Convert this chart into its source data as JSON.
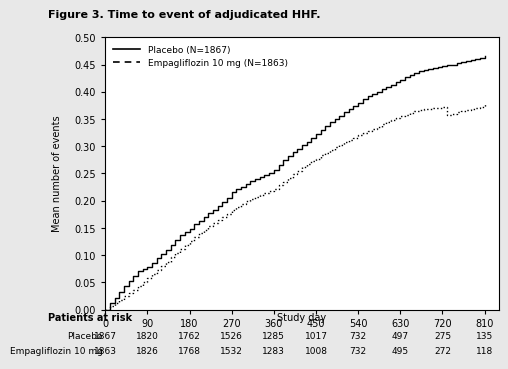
{
  "title": "Figure 3. Time to event of adjudicated HHF.",
  "xlabel": "Study day",
  "ylabel": "Mean number of events",
  "xlim": [
    0,
    840
  ],
  "ylim": [
    0.0,
    0.5
  ],
  "xticks": [
    0,
    90,
    180,
    270,
    360,
    450,
    540,
    630,
    720,
    810
  ],
  "yticks": [
    0.0,
    0.05,
    0.1,
    0.15,
    0.2,
    0.25,
    0.3,
    0.35,
    0.4,
    0.45,
    0.5
  ],
  "legend_labels": [
    "Placebo (N=1867)",
    "Empagliflozin 10 mg (N=1863)"
  ],
  "risk_table_title": "Patients at risk",
  "risk_table_rows": [
    {
      "label": "Placebo",
      "values": [
        1867,
        1820,
        1762,
        1526,
        1285,
        1017,
        732,
        497,
        275,
        135
      ]
    },
    {
      "label": "Empagliflozin 10 mg",
      "values": [
        1863,
        1826,
        1768,
        1532,
        1283,
        1008,
        732,
        495,
        272,
        118
      ]
    }
  ],
  "risk_table_days": [
    0,
    90,
    180,
    270,
    360,
    450,
    540,
    630,
    720,
    810
  ],
  "background_color": "#e8e8e8",
  "plot_bg_color": "#ffffff",
  "line_color": "#000000",
  "placebo_x": [
    0,
    10,
    20,
    30,
    40,
    50,
    60,
    70,
    80,
    90,
    100,
    110,
    120,
    130,
    140,
    150,
    160,
    170,
    180,
    190,
    200,
    210,
    220,
    230,
    240,
    250,
    260,
    270,
    280,
    290,
    300,
    310,
    320,
    330,
    340,
    350,
    360,
    370,
    380,
    390,
    400,
    410,
    420,
    430,
    440,
    450,
    460,
    470,
    480,
    490,
    500,
    510,
    520,
    530,
    540,
    550,
    560,
    570,
    580,
    590,
    600,
    610,
    620,
    630,
    640,
    650,
    660,
    670,
    680,
    690,
    700,
    710,
    720,
    730,
    740,
    750,
    760,
    770,
    780,
    790,
    800,
    810
  ],
  "placebo_y": [
    0.0,
    0.012,
    0.022,
    0.033,
    0.043,
    0.053,
    0.062,
    0.07,
    0.075,
    0.079,
    0.086,
    0.094,
    0.102,
    0.11,
    0.118,
    0.128,
    0.137,
    0.142,
    0.148,
    0.157,
    0.163,
    0.17,
    0.177,
    0.183,
    0.191,
    0.197,
    0.205,
    0.215,
    0.221,
    0.226,
    0.231,
    0.236,
    0.24,
    0.244,
    0.247,
    0.25,
    0.256,
    0.265,
    0.274,
    0.282,
    0.289,
    0.295,
    0.302,
    0.308,
    0.315,
    0.322,
    0.33,
    0.337,
    0.344,
    0.35,
    0.356,
    0.362,
    0.368,
    0.374,
    0.38,
    0.386,
    0.392,
    0.396,
    0.4,
    0.405,
    0.409,
    0.413,
    0.418,
    0.422,
    0.427,
    0.431,
    0.435,
    0.438,
    0.44,
    0.442,
    0.444,
    0.445,
    0.447,
    0.449,
    0.45,
    0.452,
    0.454,
    0.456,
    0.458,
    0.46,
    0.462,
    0.465
  ],
  "empa_x": [
    0,
    10,
    20,
    30,
    40,
    50,
    60,
    70,
    80,
    90,
    100,
    110,
    120,
    130,
    140,
    150,
    160,
    170,
    180,
    190,
    200,
    210,
    220,
    230,
    240,
    250,
    260,
    270,
    280,
    290,
    300,
    310,
    320,
    330,
    340,
    350,
    360,
    370,
    380,
    390,
    400,
    410,
    420,
    430,
    440,
    450,
    460,
    470,
    480,
    490,
    500,
    510,
    520,
    530,
    540,
    550,
    560,
    570,
    580,
    590,
    600,
    610,
    620,
    630,
    640,
    650,
    660,
    670,
    680,
    690,
    700,
    710,
    720,
    730,
    740,
    750,
    760,
    770,
    780,
    790,
    800,
    810
  ],
  "empa_y": [
    0.0,
    0.006,
    0.012,
    0.018,
    0.024,
    0.03,
    0.036,
    0.043,
    0.05,
    0.057,
    0.065,
    0.072,
    0.08,
    0.088,
    0.096,
    0.104,
    0.111,
    0.118,
    0.125,
    0.133,
    0.14,
    0.147,
    0.153,
    0.159,
    0.165,
    0.17,
    0.176,
    0.183,
    0.189,
    0.194,
    0.199,
    0.203,
    0.207,
    0.211,
    0.214,
    0.218,
    0.222,
    0.228,
    0.235,
    0.242,
    0.249,
    0.255,
    0.261,
    0.267,
    0.272,
    0.277,
    0.283,
    0.288,
    0.293,
    0.298,
    0.303,
    0.308,
    0.312,
    0.316,
    0.32,
    0.324,
    0.328,
    0.332,
    0.336,
    0.34,
    0.344,
    0.348,
    0.352,
    0.355,
    0.358,
    0.361,
    0.364,
    0.366,
    0.368,
    0.369,
    0.37,
    0.371,
    0.372,
    0.358,
    0.36,
    0.362,
    0.364,
    0.366,
    0.368,
    0.37,
    0.372,
    0.377
  ]
}
